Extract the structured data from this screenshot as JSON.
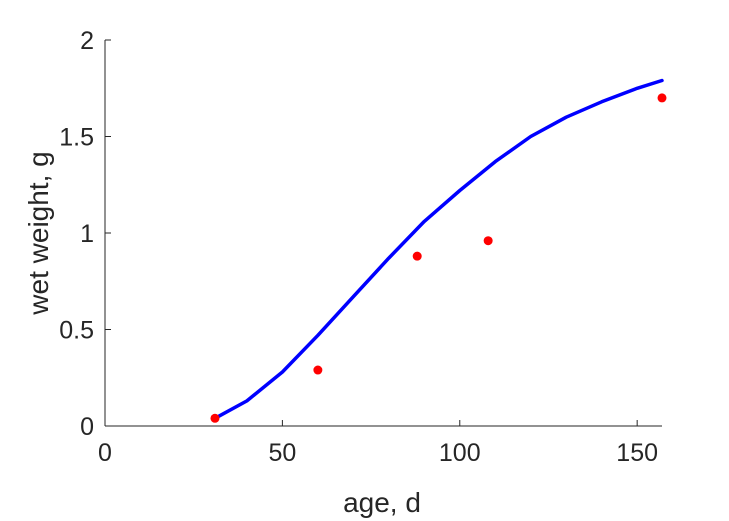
{
  "chart_data": {
    "type": "scatter",
    "title": "",
    "xlabel": "age, d",
    "ylabel": "wet weight, g",
    "xlim": [
      0,
      157
    ],
    "ylim": [
      0,
      2
    ],
    "x_ticks": [
      0,
      50,
      100,
      150
    ],
    "y_ticks": [
      0,
      0.5,
      1,
      1.5,
      2
    ],
    "x_tick_labels": [
      "0",
      "50",
      "100",
      "150"
    ],
    "y_tick_labels": [
      "0",
      "0.5",
      "1",
      "1.5",
      "2"
    ],
    "grid": false,
    "series": [
      {
        "type": "scatter",
        "color": "#ff0000",
        "x": [
          31,
          60,
          88,
          108,
          157
        ],
        "y": [
          0.04,
          0.29,
          0.88,
          0.96,
          1.7
        ]
      },
      {
        "type": "line",
        "color": "#0000ff",
        "x": [
          31,
          40,
          50,
          60,
          70,
          80,
          90,
          100,
          110,
          120,
          130,
          140,
          150,
          157
        ],
        "y": [
          0.04,
          0.13,
          0.28,
          0.47,
          0.67,
          0.87,
          1.06,
          1.22,
          1.37,
          1.5,
          1.6,
          1.68,
          1.75,
          1.79
        ]
      }
    ]
  }
}
